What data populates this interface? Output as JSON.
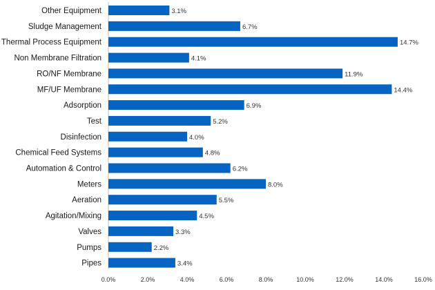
{
  "chart_data": {
    "type": "bar",
    "orientation": "horizontal",
    "title": "",
    "xlabel": "",
    "ylabel": "",
    "categories": [
      "Other Equipment",
      "Sludge Management",
      "Thermal Process Equipment",
      "Non Membrane Filtration",
      "RO/NF Membrane",
      "MF/UF Membrane",
      "Adsorption",
      "Test",
      "Disinfection",
      "Chemical Feed Systems",
      "Automation & Control",
      "Meters",
      "Aeration",
      "Agitation/Mixing",
      "Valves",
      "Pumps",
      "Pipes"
    ],
    "values": [
      3.1,
      6.7,
      14.7,
      4.1,
      11.9,
      14.4,
      6.9,
      5.2,
      4.0,
      4.8,
      6.2,
      8.0,
      5.5,
      4.5,
      3.3,
      2.2,
      3.4
    ],
    "value_labels": [
      "3.1%",
      "6.7%",
      "14.7%",
      "4.1%",
      "11.9%",
      "14.4%",
      "6.9%",
      "5.2%",
      "4.0%",
      "4.8%",
      "6.2%",
      "8.0%",
      "5.5%",
      "4.5%",
      "3.3%",
      "2.2%",
      "3.4%"
    ],
    "xlim": [
      0,
      16
    ],
    "xticks": [
      0,
      2,
      4,
      6,
      8,
      10,
      12,
      14,
      16
    ],
    "xtick_labels": [
      "0.0%",
      "2.0%",
      "4.0%",
      "6.0%",
      "8.0%",
      "10.0%",
      "12.0%",
      "14.0%",
      "16.0%"
    ],
    "grid": false,
    "legend": "none",
    "bar_color": "#0563c1"
  }
}
